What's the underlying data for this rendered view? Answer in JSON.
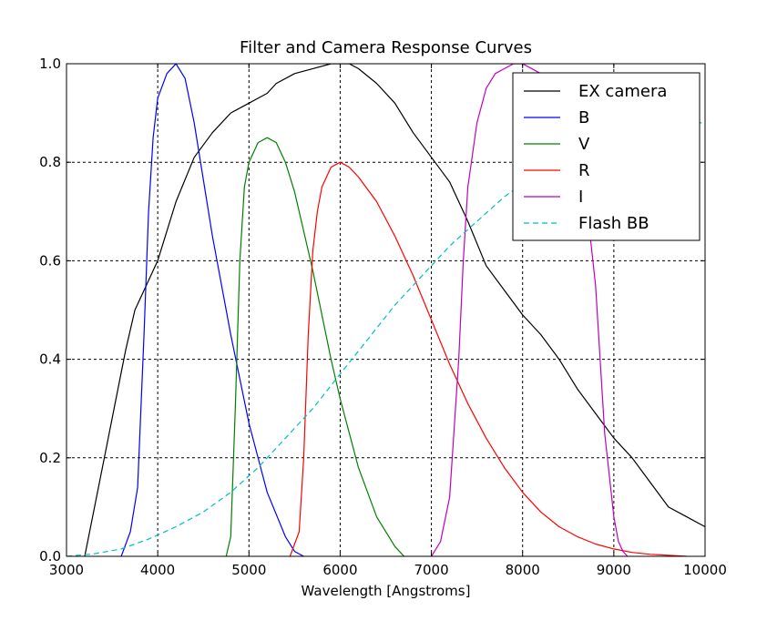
{
  "chart_data": {
    "type": "line",
    "title": "Filter and Camera Response Curves",
    "xlabel": "Wavelength [Angstroms]",
    "ylabel": "",
    "xlim": [
      3000,
      10000
    ],
    "ylim": [
      0.0,
      1.0
    ],
    "xticks": [
      3000,
      4000,
      5000,
      6000,
      7000,
      8000,
      9000,
      10000
    ],
    "xtick_labels": [
      "3000",
      "4000",
      "5000",
      "6000",
      "7000",
      "8000",
      "9000",
      "10000"
    ],
    "yticks": [
      0.0,
      0.2,
      0.4,
      0.6,
      0.8,
      1.0
    ],
    "ytick_labels": [
      "0.0",
      "0.2",
      "0.4",
      "0.6",
      "0.8",
      "1.0"
    ],
    "grid": true,
    "legend_position": "top-right",
    "series": [
      {
        "name": "EX camera",
        "color": "#000000",
        "dash": "solid",
        "x": [
          3200,
          3350,
          3500,
          3650,
          3750,
          3850,
          4000,
          4200,
          4400,
          4600,
          4800,
          5000,
          5100,
          5200,
          5300,
          5500,
          5700,
          5900,
          6000,
          6100,
          6200,
          6400,
          6600,
          6800,
          7000,
          7200,
          7400,
          7600,
          7800,
          8000,
          8200,
          8400,
          8600,
          8800,
          9000,
          9200,
          9400,
          9600,
          9800,
          10000
        ],
        "y": [
          0.0,
          0.14,
          0.28,
          0.42,
          0.5,
          0.54,
          0.6,
          0.72,
          0.81,
          0.86,
          0.9,
          0.92,
          0.93,
          0.94,
          0.96,
          0.98,
          0.99,
          1.0,
          1.0,
          1.0,
          0.99,
          0.96,
          0.92,
          0.86,
          0.81,
          0.76,
          0.68,
          0.59,
          0.54,
          0.49,
          0.45,
          0.4,
          0.34,
          0.29,
          0.24,
          0.2,
          0.15,
          0.1,
          0.08,
          0.06
        ]
      },
      {
        "name": "B",
        "color": "#0000ff",
        "dash": "solid",
        "x": [
          3600,
          3700,
          3780,
          3850,
          3900,
          3950,
          4000,
          4100,
          4200,
          4300,
          4400,
          4600,
          4800,
          5000,
          5200,
          5400,
          5500,
          5600
        ],
        "y": [
          0.0,
          0.05,
          0.14,
          0.45,
          0.7,
          0.85,
          0.93,
          0.98,
          1.0,
          0.97,
          0.88,
          0.65,
          0.45,
          0.27,
          0.13,
          0.04,
          0.01,
          0.0
        ]
      },
      {
        "name": "V",
        "color": "#008000",
        "dash": "solid",
        "x": [
          4750,
          4800,
          4850,
          4900,
          4950,
          5000,
          5100,
          5200,
          5300,
          5400,
          5500,
          5600,
          5700,
          5800,
          5900,
          6000,
          6200,
          6400,
          6600,
          6700
        ],
        "y": [
          0.0,
          0.04,
          0.3,
          0.6,
          0.75,
          0.8,
          0.84,
          0.85,
          0.84,
          0.8,
          0.74,
          0.66,
          0.58,
          0.49,
          0.4,
          0.32,
          0.18,
          0.08,
          0.02,
          0.0
        ]
      },
      {
        "name": "R",
        "color": "#ff0000",
        "dash": "solid",
        "x": [
          5450,
          5550,
          5600,
          5650,
          5700,
          5750,
          5800,
          5900,
          6000,
          6100,
          6200,
          6400,
          6600,
          6800,
          7000,
          7200,
          7400,
          7600,
          7800,
          8000,
          8200,
          8400,
          8600,
          8800,
          9000,
          9200,
          9400,
          9600,
          9800
        ],
        "y": [
          0.0,
          0.05,
          0.2,
          0.45,
          0.62,
          0.7,
          0.75,
          0.79,
          0.8,
          0.79,
          0.77,
          0.72,
          0.65,
          0.57,
          0.48,
          0.39,
          0.31,
          0.24,
          0.18,
          0.13,
          0.09,
          0.06,
          0.04,
          0.025,
          0.015,
          0.008,
          0.004,
          0.002,
          0.0
        ]
      },
      {
        "name": "I",
        "color": "#bf00bf",
        "dash": "solid",
        "x": [
          7000,
          7100,
          7200,
          7300,
          7350,
          7400,
          7500,
          7600,
          7700,
          7800,
          7900,
          8000,
          8200,
          8400,
          8600,
          8700,
          8800,
          8850,
          8900,
          9000,
          9050,
          9100,
          9150
        ],
        "y": [
          0.0,
          0.03,
          0.12,
          0.4,
          0.6,
          0.75,
          0.88,
          0.95,
          0.98,
          0.99,
          1.0,
          1.0,
          0.98,
          0.92,
          0.82,
          0.72,
          0.55,
          0.4,
          0.25,
          0.08,
          0.03,
          0.01,
          0.0
        ]
      },
      {
        "name": "Flash BB",
        "color": "#00bfbf",
        "dash": "dashed",
        "x": [
          3000,
          3300,
          3600,
          3900,
          4200,
          4500,
          4800,
          5100,
          5400,
          5700,
          6000,
          6300,
          6600,
          6900,
          7200,
          7500,
          7800,
          8100,
          8400,
          8700,
          9000,
          9300,
          9600,
          9800,
          10000
        ],
        "y": [
          0.0,
          0.005,
          0.015,
          0.035,
          0.06,
          0.09,
          0.13,
          0.18,
          0.24,
          0.3,
          0.37,
          0.44,
          0.51,
          0.57,
          0.63,
          0.68,
          0.73,
          0.77,
          0.8,
          0.83,
          0.85,
          0.87,
          0.88,
          0.88,
          0.88
        ]
      }
    ]
  }
}
